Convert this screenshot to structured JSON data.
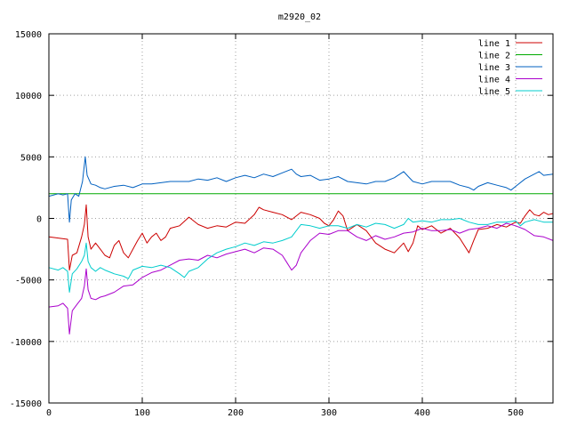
{
  "chart_data": {
    "type": "line",
    "title": "m2920_02",
    "xlabel": "",
    "ylabel": "",
    "xlim": [
      0,
      540
    ],
    "ylim": [
      -15000,
      15000
    ],
    "x_ticks": [
      "0",
      "100",
      "200",
      "300",
      "400",
      "500"
    ],
    "y_ticks": [
      "-15000",
      "-10000",
      "-5000",
      "0",
      "5000",
      "10000",
      "15000"
    ],
    "grid": true,
    "legend_position": "top-right",
    "series": [
      {
        "name": "line 1",
        "color": "#cc0000",
        "points": [
          [
            0,
            -1500
          ],
          [
            10,
            -1600
          ],
          [
            20,
            -1700
          ],
          [
            22,
            -4200
          ],
          [
            25,
            -3000
          ],
          [
            30,
            -2800
          ],
          [
            35,
            -1500
          ],
          [
            38,
            -500
          ],
          [
            40,
            1100
          ],
          [
            42,
            -1500
          ],
          [
            45,
            -2500
          ],
          [
            50,
            -2000
          ],
          [
            55,
            -2500
          ],
          [
            60,
            -3000
          ],
          [
            65,
            -3200
          ],
          [
            70,
            -2200
          ],
          [
            75,
            -1800
          ],
          [
            80,
            -2800
          ],
          [
            85,
            -3200
          ],
          [
            90,
            -2500
          ],
          [
            95,
            -1800
          ],
          [
            100,
            -1200
          ],
          [
            105,
            -2000
          ],
          [
            110,
            -1500
          ],
          [
            115,
            -1200
          ],
          [
            120,
            -1800
          ],
          [
            125,
            -1500
          ],
          [
            130,
            -800
          ],
          [
            140,
            -600
          ],
          [
            150,
            100
          ],
          [
            160,
            -500
          ],
          [
            170,
            -800
          ],
          [
            180,
            -600
          ],
          [
            190,
            -700
          ],
          [
            200,
            -300
          ],
          [
            210,
            -400
          ],
          [
            220,
            300
          ],
          [
            225,
            900
          ],
          [
            230,
            700
          ],
          [
            240,
            500
          ],
          [
            250,
            300
          ],
          [
            260,
            -100
          ],
          [
            270,
            500
          ],
          [
            280,
            300
          ],
          [
            290,
            0
          ],
          [
            295,
            -400
          ],
          [
            300,
            -600
          ],
          [
            305,
            -100
          ],
          [
            310,
            600
          ],
          [
            315,
            200
          ],
          [
            320,
            -1000
          ],
          [
            330,
            -500
          ],
          [
            340,
            -1000
          ],
          [
            350,
            -2000
          ],
          [
            360,
            -2500
          ],
          [
            370,
            -2800
          ],
          [
            380,
            -2000
          ],
          [
            385,
            -2700
          ],
          [
            390,
            -2000
          ],
          [
            395,
            -600
          ],
          [
            400,
            -900
          ],
          [
            410,
            -600
          ],
          [
            420,
            -1200
          ],
          [
            430,
            -800
          ],
          [
            440,
            -1600
          ],
          [
            450,
            -2800
          ],
          [
            455,
            -1800
          ],
          [
            460,
            -900
          ],
          [
            470,
            -800
          ],
          [
            480,
            -500
          ],
          [
            490,
            -700
          ],
          [
            500,
            -300
          ],
          [
            505,
            -400
          ],
          [
            510,
            200
          ],
          [
            515,
            700
          ],
          [
            520,
            300
          ],
          [
            525,
            200
          ],
          [
            530,
            500
          ],
          [
            535,
            300
          ],
          [
            540,
            400
          ]
        ]
      },
      {
        "name": "line 2",
        "color": "#00aa00",
        "points": [
          [
            0,
            2000
          ],
          [
            540,
            2000
          ]
        ]
      },
      {
        "name": "line 3",
        "color": "#0060c0",
        "points": [
          [
            0,
            1800
          ],
          [
            10,
            2000
          ],
          [
            15,
            1900
          ],
          [
            20,
            2000
          ],
          [
            22,
            -300
          ],
          [
            24,
            1500
          ],
          [
            28,
            2000
          ],
          [
            32,
            1800
          ],
          [
            36,
            3000
          ],
          [
            39,
            5000
          ],
          [
            41,
            3500
          ],
          [
            45,
            2800
          ],
          [
            50,
            2700
          ],
          [
            55,
            2500
          ],
          [
            60,
            2400
          ],
          [
            70,
            2600
          ],
          [
            80,
            2700
          ],
          [
            90,
            2500
          ],
          [
            100,
            2800
          ],
          [
            110,
            2800
          ],
          [
            120,
            2900
          ],
          [
            130,
            3000
          ],
          [
            140,
            3000
          ],
          [
            150,
            3000
          ],
          [
            160,
            3200
          ],
          [
            170,
            3100
          ],
          [
            180,
            3300
          ],
          [
            190,
            3000
          ],
          [
            200,
            3300
          ],
          [
            210,
            3500
          ],
          [
            220,
            3300
          ],
          [
            230,
            3600
          ],
          [
            240,
            3400
          ],
          [
            250,
            3700
          ],
          [
            260,
            4000
          ],
          [
            265,
            3600
          ],
          [
            270,
            3400
          ],
          [
            280,
            3500
          ],
          [
            290,
            3100
          ],
          [
            300,
            3200
          ],
          [
            310,
            3400
          ],
          [
            320,
            3000
          ],
          [
            330,
            2900
          ],
          [
            340,
            2800
          ],
          [
            350,
            3000
          ],
          [
            360,
            3000
          ],
          [
            370,
            3300
          ],
          [
            380,
            3800
          ],
          [
            385,
            3400
          ],
          [
            390,
            3000
          ],
          [
            400,
            2800
          ],
          [
            410,
            3000
          ],
          [
            420,
            3000
          ],
          [
            430,
            3000
          ],
          [
            440,
            2700
          ],
          [
            450,
            2500
          ],
          [
            455,
            2300
          ],
          [
            460,
            2600
          ],
          [
            470,
            2900
          ],
          [
            480,
            2700
          ],
          [
            490,
            2500
          ],
          [
            495,
            2300
          ],
          [
            500,
            2600
          ],
          [
            510,
            3200
          ],
          [
            520,
            3600
          ],
          [
            525,
            3800
          ],
          [
            530,
            3500
          ],
          [
            540,
            3600
          ]
        ]
      },
      {
        "name": "line 4",
        "color": "#aa00cc",
        "points": [
          [
            0,
            -7200
          ],
          [
            10,
            -7100
          ],
          [
            15,
            -6900
          ],
          [
            20,
            -7300
          ],
          [
            22,
            -9400
          ],
          [
            25,
            -7500
          ],
          [
            30,
            -7000
          ],
          [
            35,
            -6500
          ],
          [
            38,
            -5500
          ],
          [
            40,
            -4100
          ],
          [
            42,
            -5800
          ],
          [
            45,
            -6500
          ],
          [
            50,
            -6600
          ],
          [
            55,
            -6400
          ],
          [
            60,
            -6300
          ],
          [
            70,
            -6000
          ],
          [
            80,
            -5500
          ],
          [
            90,
            -5400
          ],
          [
            100,
            -4800
          ],
          [
            110,
            -4400
          ],
          [
            120,
            -4200
          ],
          [
            130,
            -3800
          ],
          [
            140,
            -3400
          ],
          [
            150,
            -3300
          ],
          [
            160,
            -3400
          ],
          [
            170,
            -3000
          ],
          [
            180,
            -3200
          ],
          [
            190,
            -2900
          ],
          [
            200,
            -2700
          ],
          [
            210,
            -2500
          ],
          [
            220,
            -2800
          ],
          [
            230,
            -2400
          ],
          [
            240,
            -2500
          ],
          [
            250,
            -3000
          ],
          [
            255,
            -3600
          ],
          [
            260,
            -4200
          ],
          [
            265,
            -3800
          ],
          [
            270,
            -2800
          ],
          [
            280,
            -1800
          ],
          [
            290,
            -1200
          ],
          [
            300,
            -1300
          ],
          [
            310,
            -1000
          ],
          [
            320,
            -1000
          ],
          [
            330,
            -1500
          ],
          [
            340,
            -1800
          ],
          [
            350,
            -1400
          ],
          [
            360,
            -1700
          ],
          [
            370,
            -1500
          ],
          [
            380,
            -1200
          ],
          [
            390,
            -1100
          ],
          [
            400,
            -800
          ],
          [
            410,
            -1000
          ],
          [
            420,
            -1000
          ],
          [
            430,
            -900
          ],
          [
            440,
            -1200
          ],
          [
            450,
            -900
          ],
          [
            460,
            -800
          ],
          [
            470,
            -600
          ],
          [
            480,
            -800
          ],
          [
            490,
            -400
          ],
          [
            500,
            -600
          ],
          [
            510,
            -900
          ],
          [
            520,
            -1400
          ],
          [
            530,
            -1500
          ],
          [
            540,
            -1800
          ]
        ]
      },
      {
        "name": "line 5",
        "color": "#00cccc",
        "points": [
          [
            0,
            -4000
          ],
          [
            10,
            -4200
          ],
          [
            15,
            -4000
          ],
          [
            20,
            -4300
          ],
          [
            22,
            -6000
          ],
          [
            25,
            -4500
          ],
          [
            30,
            -4100
          ],
          [
            35,
            -3500
          ],
          [
            38,
            -3000
          ],
          [
            40,
            -2000
          ],
          [
            42,
            -3500
          ],
          [
            45,
            -4000
          ],
          [
            50,
            -4300
          ],
          [
            55,
            -4000
          ],
          [
            60,
            -4200
          ],
          [
            70,
            -4500
          ],
          [
            80,
            -4700
          ],
          [
            85,
            -4900
          ],
          [
            90,
            -4200
          ],
          [
            100,
            -3900
          ],
          [
            110,
            -4000
          ],
          [
            120,
            -3800
          ],
          [
            130,
            -4000
          ],
          [
            140,
            -4500
          ],
          [
            145,
            -4800
          ],
          [
            150,
            -4300
          ],
          [
            160,
            -4000
          ],
          [
            170,
            -3300
          ],
          [
            180,
            -2800
          ],
          [
            190,
            -2500
          ],
          [
            200,
            -2300
          ],
          [
            210,
            -2000
          ],
          [
            220,
            -2200
          ],
          [
            230,
            -1900
          ],
          [
            240,
            -2000
          ],
          [
            250,
            -1800
          ],
          [
            260,
            -1500
          ],
          [
            270,
            -500
          ],
          [
            280,
            -600
          ],
          [
            290,
            -800
          ],
          [
            300,
            -600
          ],
          [
            310,
            -600
          ],
          [
            320,
            -800
          ],
          [
            330,
            -500
          ],
          [
            340,
            -700
          ],
          [
            350,
            -400
          ],
          [
            360,
            -500
          ],
          [
            370,
            -800
          ],
          [
            380,
            -500
          ],
          [
            385,
            0
          ],
          [
            390,
            -300
          ],
          [
            400,
            -200
          ],
          [
            410,
            -300
          ],
          [
            420,
            -100
          ],
          [
            430,
            -100
          ],
          [
            440,
            0
          ],
          [
            450,
            -300
          ],
          [
            460,
            -500
          ],
          [
            470,
            -500
          ],
          [
            480,
            -300
          ],
          [
            490,
            -300
          ],
          [
            500,
            -200
          ],
          [
            505,
            -600
          ],
          [
            510,
            -300
          ],
          [
            520,
            -100
          ],
          [
            525,
            -200
          ],
          [
            530,
            -300
          ],
          [
            540,
            -300
          ]
        ]
      }
    ]
  }
}
